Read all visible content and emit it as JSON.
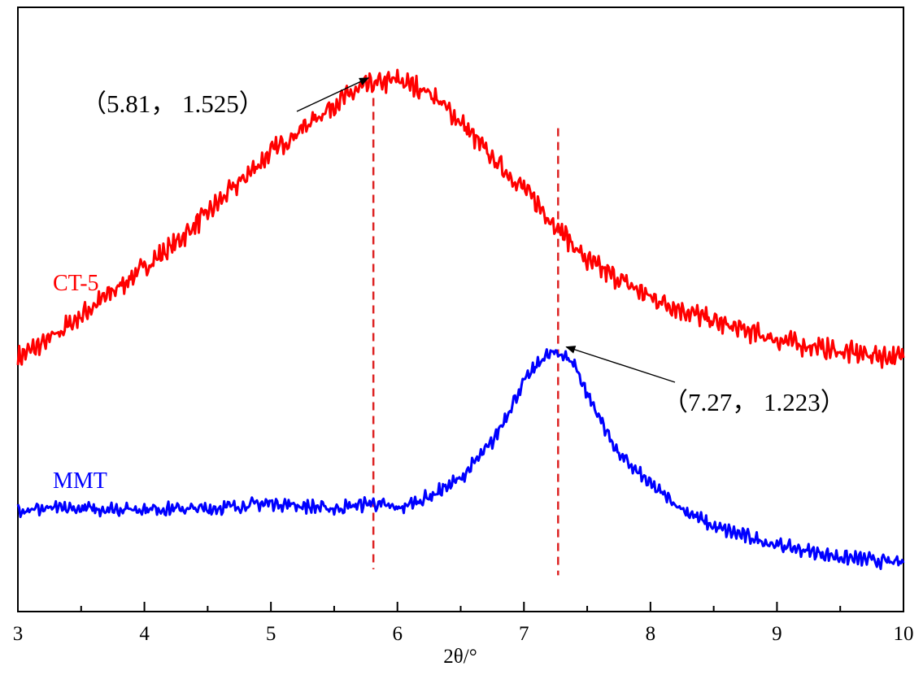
{
  "chart_data": {
    "type": "line",
    "title": "",
    "xlabel": "2θ/°",
    "ylabel": "",
    "xlim": [
      3,
      10
    ],
    "ylim": [
      0,
      1
    ],
    "x_ticks": [
      3,
      4,
      5,
      6,
      7,
      8,
      9,
      10
    ],
    "x_tick_labels": [
      "3",
      "4",
      "5",
      "6",
      "7",
      "8",
      "9",
      "10"
    ],
    "y_ticks_shown": false,
    "grid": false,
    "legend": "none (series labelled inline)",
    "series": [
      {
        "name": "CT-5",
        "color": "#ff0000",
        "x": [
          3.0,
          3.25,
          3.5,
          3.75,
          4.0,
          4.25,
          4.5,
          4.75,
          5.0,
          5.25,
          5.5,
          5.75,
          6.0,
          6.25,
          6.5,
          6.75,
          7.0,
          7.25,
          7.5,
          7.75,
          8.0,
          8.5,
          9.0,
          9.5,
          10.0
        ],
        "y": [
          0.42,
          0.45,
          0.49,
          0.53,
          0.57,
          0.61,
          0.66,
          0.71,
          0.76,
          0.8,
          0.84,
          0.87,
          0.88,
          0.86,
          0.81,
          0.75,
          0.7,
          0.64,
          0.58,
          0.55,
          0.52,
          0.48,
          0.45,
          0.43,
          0.42
        ]
      },
      {
        "name": "MMT",
        "color": "#0000ff",
        "x": [
          3.0,
          3.5,
          4.0,
          4.5,
          5.0,
          5.5,
          5.8,
          6.0,
          6.25,
          6.5,
          6.75,
          7.0,
          7.15,
          7.27,
          7.4,
          7.5,
          7.75,
          8.0,
          8.25,
          8.5,
          9.0,
          9.5,
          10.0
        ],
        "y": [
          0.17,
          0.17,
          0.17,
          0.17,
          0.18,
          0.17,
          0.18,
          0.17,
          0.19,
          0.22,
          0.28,
          0.38,
          0.42,
          0.43,
          0.41,
          0.36,
          0.26,
          0.21,
          0.17,
          0.14,
          0.11,
          0.09,
          0.08
        ]
      }
    ],
    "series_labels": [
      "CT-5",
      "MMT"
    ],
    "reference_lines": [
      {
        "x": 5.81,
        "color": "#dd2222"
      },
      {
        "x": 7.27,
        "color": "#dd2222"
      }
    ],
    "annotations": [
      {
        "text": "（5.81， 1.525）",
        "point_x": 5.81,
        "series": "CT-5"
      },
      {
        "text": "（7.27， 1.223）",
        "point_x": 7.27,
        "series": "MMT"
      }
    ]
  }
}
